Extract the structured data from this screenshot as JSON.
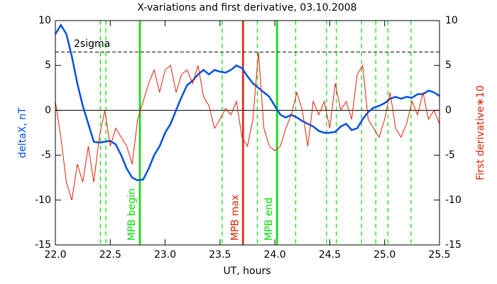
{
  "chart_data": {
    "type": "line",
    "title": "X-variations and first derivative, 03.10.2008",
    "x_label": "UT, hours",
    "y_label": "deltaX, nT",
    "y2_label": "First derivative∗10",
    "xlim": [
      22.0,
      25.5
    ],
    "xticks": [
      {
        "value": 22,
        "label": "22.0"
      },
      22.5,
      {
        "value": 23,
        "label": "23.0"
      },
      23.5,
      {
        "value": 24,
        "label": "24.0"
      },
      24.5,
      {
        "value": 25,
        "label": "25.0"
      },
      25.5
    ],
    "ylim": [
      -15,
      10
    ],
    "yticks": [
      -15,
      -10,
      -5,
      0,
      5,
      10
    ],
    "y2lim": [
      -15,
      10
    ],
    "y2ticks": [
      -15,
      -10,
      -5,
      0,
      5,
      10
    ],
    "zero_line": 0,
    "x": [
      22.0,
      22.05,
      22.1,
      22.15,
      22.2,
      22.25,
      22.3,
      22.35,
      22.4,
      22.45,
      22.5,
      22.55,
      22.6,
      22.65,
      22.7,
      22.75,
      22.8,
      22.85,
      22.9,
      22.95,
      23.0,
      23.05,
      23.1,
      23.15,
      23.2,
      23.25,
      23.3,
      23.35,
      23.4,
      23.45,
      23.5,
      23.55,
      23.6,
      23.65,
      23.7,
      23.75,
      23.8,
      23.85,
      23.9,
      23.95,
      24.0,
      24.05,
      24.1,
      24.15,
      24.2,
      24.25,
      24.3,
      24.35,
      24.4,
      24.45,
      24.5,
      24.55,
      24.6,
      24.65,
      24.7,
      24.75,
      24.8,
      24.85,
      24.9,
      24.95,
      25.0,
      25.05,
      25.1,
      25.15,
      25.2,
      25.25,
      25.3,
      25.35,
      25.4,
      25.45,
      25.5
    ],
    "series": [
      {
        "color": "#0050e0",
        "axis": "y",
        "values": [
          8.5,
          9.5,
          8.5,
          6,
          3,
          0.5,
          -1.5,
          -3.5,
          -3.6,
          -3.5,
          -3.4,
          -3.8,
          -5,
          -6.5,
          -7.5,
          -7.8,
          -7.7,
          -6.5,
          -5,
          -4,
          -2.5,
          -1.5,
          0,
          1.5,
          2.8,
          3.3,
          4,
          4.5,
          4,
          4.5,
          4.3,
          4.2,
          4.5,
          5,
          4.7,
          3.8,
          3,
          2.5,
          2,
          1.5,
          0.5,
          -0.5,
          -0.8,
          -0.5,
          -0.8,
          -1.2,
          -1.5,
          -1.8,
          -2.3,
          -2.5,
          -2.5,
          -2.4,
          -1.8,
          -1.5,
          -2.2,
          -2,
          -1,
          -0.2,
          0.3,
          0.5,
          0.8,
          1.3,
          1.5,
          1.3,
          1.5,
          1.4,
          1.8,
          1.8,
          2.2,
          2,
          1.6
        ]
      },
      {
        "color": "#e02000",
        "axis": "y2",
        "values": [
          1,
          -3,
          -8,
          -10,
          -6,
          -8,
          -4,
          -8,
          -3,
          0,
          -4,
          -2,
          -3,
          -4,
          -6,
          -1,
          1,
          3,
          4.5,
          2,
          4.5,
          5,
          2,
          4,
          4.5,
          3,
          5,
          1.5,
          0.5,
          -2,
          -1,
          0.2,
          -0.5,
          1,
          -3,
          -4,
          -1,
          6.5,
          -2,
          -4,
          -4.5,
          -4,
          -2,
          -0.5,
          2,
          0,
          -4,
          1,
          -0.5,
          1,
          -2,
          3,
          0,
          1,
          -1,
          4,
          5,
          -1,
          -2,
          -3,
          -1,
          2,
          -2,
          -3,
          -1.5,
          1,
          -0.5,
          2,
          -1,
          0,
          -1.5
        ]
      }
    ],
    "hline": {
      "y": 6.5,
      "label": "2sigma",
      "color": "#000000"
    },
    "vlines": [
      {
        "x": 22.41,
        "color": "#00e000",
        "style": "dashed"
      },
      {
        "x": 22.46,
        "color": "#00e000",
        "style": "dashed"
      },
      {
        "x": 22.77,
        "color": "#00e000",
        "style": "solid",
        "label": "MPB begin"
      },
      {
        "x": 23.52,
        "color": "#00e000",
        "style": "dashed"
      },
      {
        "x": 23.71,
        "color": "#e02000",
        "style": "solid",
        "label": "MPB max"
      },
      {
        "x": 23.84,
        "color": "#00e000",
        "style": "dashed"
      },
      {
        "x": 24.02,
        "color": "#00e000",
        "style": "solid",
        "label": "MPB end"
      },
      {
        "x": 24.19,
        "color": "#00e000",
        "style": "dashed"
      },
      {
        "x": 24.47,
        "color": "#00e000",
        "style": "dashed"
      },
      {
        "x": 24.56,
        "color": "#00e000",
        "style": "dashed"
      },
      {
        "x": 24.79,
        "color": "#00e000",
        "style": "dashed"
      },
      {
        "x": 24.92,
        "color": "#00e000",
        "style": "dashed"
      },
      {
        "x": 25.03,
        "color": "#00e000",
        "style": "dashed"
      },
      {
        "x": 25.24,
        "color": "#00e000",
        "style": "dashed"
      }
    ]
  }
}
